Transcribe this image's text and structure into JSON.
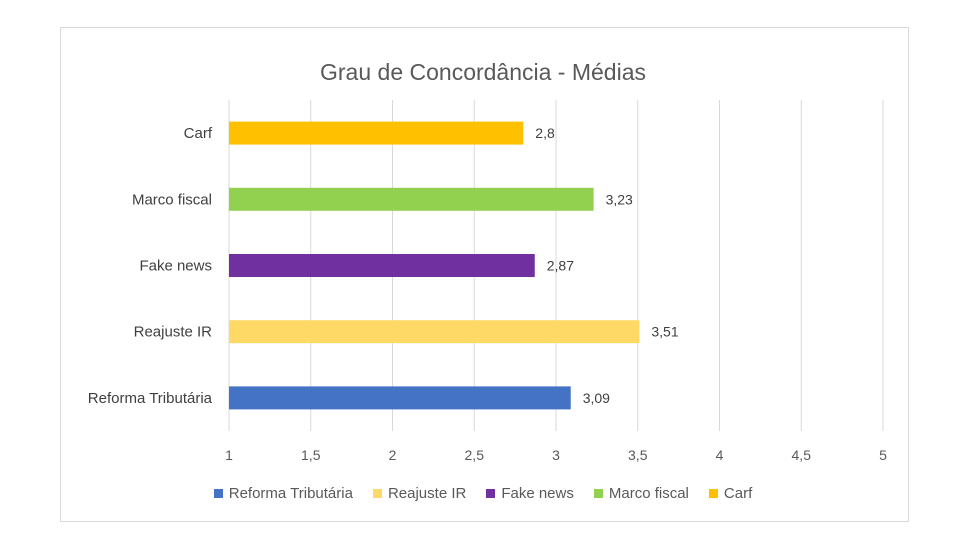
{
  "chart_data": {
    "type": "bar",
    "orientation": "horizontal",
    "title": "Grau de Concordância - Médias",
    "categories": [
      "Reforma Tributária",
      "Reajuste IR",
      "Fake news",
      "Marco fiscal",
      "Carf"
    ],
    "values": [
      3.09,
      3.51,
      2.87,
      3.23,
      2.8
    ],
    "value_labels": [
      "3,09",
      "3,51",
      "2,87",
      "3,23",
      "2,8"
    ],
    "colors": [
      "#4472C4",
      "#FFD966",
      "#7030A0",
      "#92D050",
      "#FFC000"
    ],
    "xlim": [
      1,
      5
    ],
    "ticks": [
      1,
      1.5,
      2,
      2.5,
      3,
      3.5,
      4,
      4.5,
      5
    ],
    "tick_labels": [
      "1",
      "1,5",
      "2",
      "2,5",
      "3",
      "3,5",
      "4",
      "4,5",
      "5"
    ],
    "grid": true,
    "legend_position": "bottom",
    "legend": [
      "Reforma Tributária",
      "Reajuste IR",
      "Fake news",
      "Marco fiscal",
      "Carf"
    ]
  }
}
